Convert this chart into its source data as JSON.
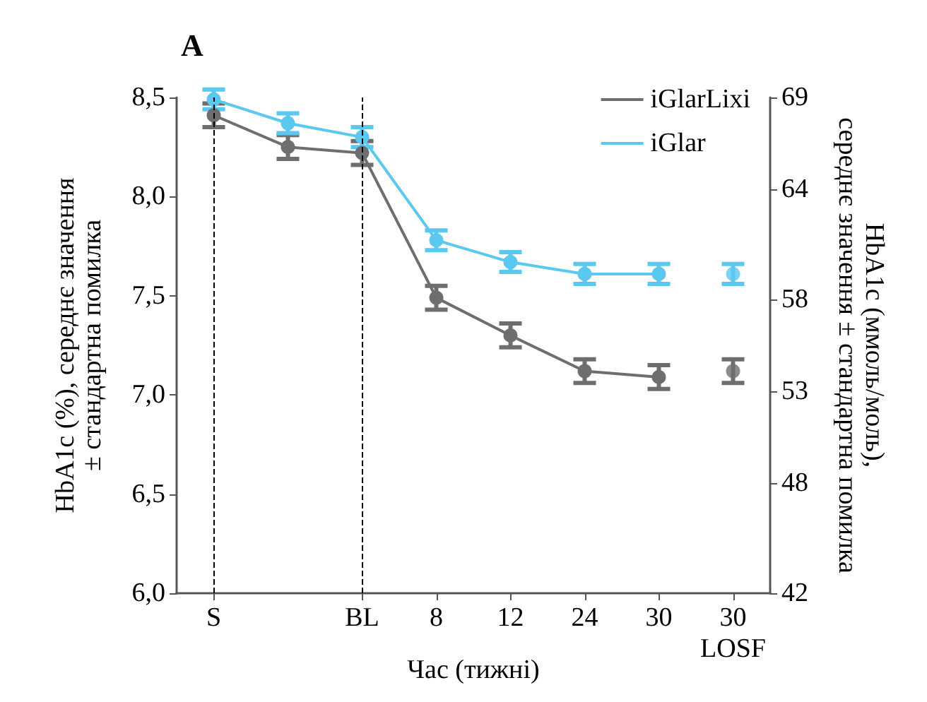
{
  "chart_data": {
    "type": "line",
    "title": "A",
    "xlabel": "Час (тижні)",
    "ylabel": "HbA1c (%), середнє значення\n± стандартна помилка",
    "y2label": "HbA1c (ммоль/моль),\nсереднє значення ± стандартна помилка",
    "categories": [
      "S",
      null,
      "BL",
      "8",
      "12",
      "24",
      "30",
      "30"
    ],
    "annotations": [
      "LOSF"
    ],
    "ylim": [
      6.0,
      8.5
    ],
    "yticks": [
      {
        "value": 6.0,
        "label": "6,0"
      },
      {
        "value": 6.5,
        "label": "6,5"
      },
      {
        "value": 7.0,
        "label": "7,0"
      },
      {
        "value": 7.5,
        "label": "7,5"
      },
      {
        "value": 8.0,
        "label": "8,0"
      },
      {
        "value": 8.5,
        "label": "8,5"
      }
    ],
    "y2lim": [
      42,
      69
    ],
    "y2ticks": [
      42,
      48,
      53,
      58,
      64,
      69
    ],
    "series": [
      {
        "name": "iGlarLixi",
        "color": "#6d6e70",
        "values": [
          8.41,
          8.25,
          8.22,
          7.49,
          7.3,
          7.12,
          7.09,
          null
        ],
        "errors": [
          0.06,
          0.06,
          0.06,
          0.06,
          0.06,
          0.06,
          0.06,
          null
        ]
      },
      {
        "name": "iGlar",
        "color": "#5bc8f0",
        "values": [
          8.49,
          8.37,
          8.3,
          7.78,
          7.67,
          7.61,
          7.61,
          null
        ],
        "errors": [
          0.05,
          0.05,
          0.05,
          0.05,
          0.05,
          0.05,
          0.05,
          null
        ]
      },
      {
        "type": "scatter",
        "color": "#6d6e70",
        "values": [
          null,
          null,
          null,
          null,
          null,
          null,
          null,
          7.12
        ],
        "errors": [
          null,
          null,
          null,
          null,
          null,
          null,
          null,
          0.06
        ]
      },
      {
        "type": "scatter",
        "color": "#5bc8f0",
        "values": [
          null,
          null,
          null,
          null,
          null,
          null,
          null,
          7.61
        ],
        "errors": [
          null,
          null,
          null,
          null,
          null,
          null,
          null,
          0.05
        ]
      }
    ],
    "ref_lines": [
      {
        "axis": "x",
        "value": "S",
        "line_style": "dashed",
        "color": "#000000"
      },
      {
        "axis": "x",
        "value": "BL",
        "line_style": "dashed",
        "color": "#000000"
      }
    ],
    "marker": "circle",
    "line_style": "solid",
    "legend": "top right"
  }
}
